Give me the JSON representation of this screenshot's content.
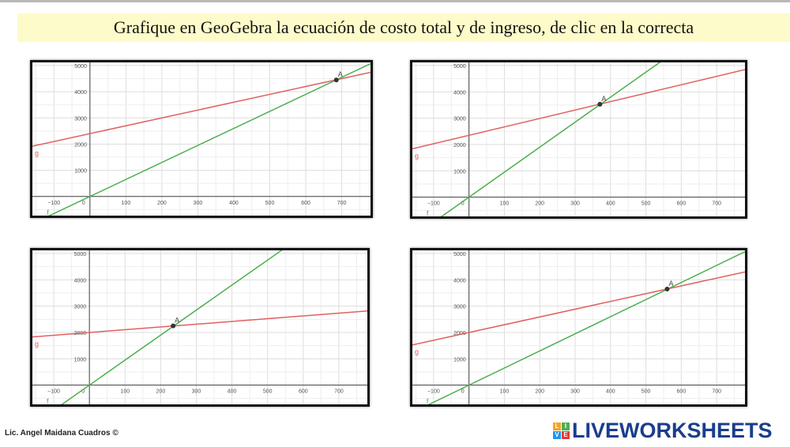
{
  "title": "Grafique en  GeoGebra la ecuación de costo total y de ingreso, de clic en la correcta",
  "author": "Lic. Angel Maidana Cuadros ©",
  "logo": {
    "text": "LIVEWORKSHEETS",
    "letters": [
      "L",
      "I",
      "V",
      "E"
    ],
    "colors": [
      "#f5a623",
      "#4caf50",
      "#2196f3",
      "#e53935"
    ]
  },
  "colors": {
    "g": "#e06060",
    "f": "#4caf50",
    "point": "#333333"
  },
  "chart_data": [
    {
      "type": "line",
      "xlim": [
        -160,
        780
      ],
      "ylim": [
        -730,
        5120
      ],
      "x_ticks": [
        -100,
        0,
        100,
        200,
        300,
        400,
        500,
        600,
        700
      ],
      "y_ticks": [
        1000,
        2000,
        3000,
        4000,
        5000
      ],
      "grid": true,
      "series": [
        {
          "name": "g",
          "intercept": 2400,
          "slope": 3.0
        },
        {
          "name": "f",
          "intercept": 0,
          "slope": 6.5
        }
      ],
      "point": {
        "label": "A",
        "x": 685,
        "y": 4450
      }
    },
    {
      "type": "line",
      "xlim": [
        -160,
        780
      ],
      "ylim": [
        -730,
        5120
      ],
      "x_ticks": [
        -100,
        0,
        100,
        200,
        300,
        400,
        500,
        600,
        700
      ],
      "y_ticks": [
        1000,
        2000,
        3000,
        4000,
        5000
      ],
      "grid": true,
      "series": [
        {
          "name": "g",
          "intercept": 2350,
          "slope": 3.2
        },
        {
          "name": "f",
          "intercept": 0,
          "slope": 9.5
        }
      ],
      "point": {
        "label": "A",
        "x": 370,
        "y": 3530
      }
    },
    {
      "type": "line",
      "xlim": [
        -160,
        780
      ],
      "ylim": [
        -730,
        5120
      ],
      "x_ticks": [
        -100,
        0,
        100,
        200,
        300,
        400,
        500,
        600,
        700
      ],
      "y_ticks": [
        1000,
        2000,
        3000,
        4000,
        5000
      ],
      "grid": true,
      "series": [
        {
          "name": "g",
          "intercept": 2000,
          "slope": 1.05
        },
        {
          "name": "f",
          "intercept": 0,
          "slope": 9.5
        }
      ],
      "point": {
        "label": "A",
        "x": 235,
        "y": 2250
      }
    },
    {
      "type": "line",
      "xlim": [
        -160,
        780
      ],
      "ylim": [
        -730,
        5120
      ],
      "x_ticks": [
        -100,
        0,
        100,
        200,
        300,
        400,
        500,
        600,
        700
      ],
      "y_ticks": [
        1000,
        2000,
        3000,
        4000,
        5000
      ],
      "grid": true,
      "series": [
        {
          "name": "g",
          "intercept": 2000,
          "slope": 2.95
        },
        {
          "name": "f",
          "intercept": 0,
          "slope": 6.5
        }
      ],
      "point": {
        "label": "A",
        "x": 560,
        "y": 3650
      }
    }
  ]
}
